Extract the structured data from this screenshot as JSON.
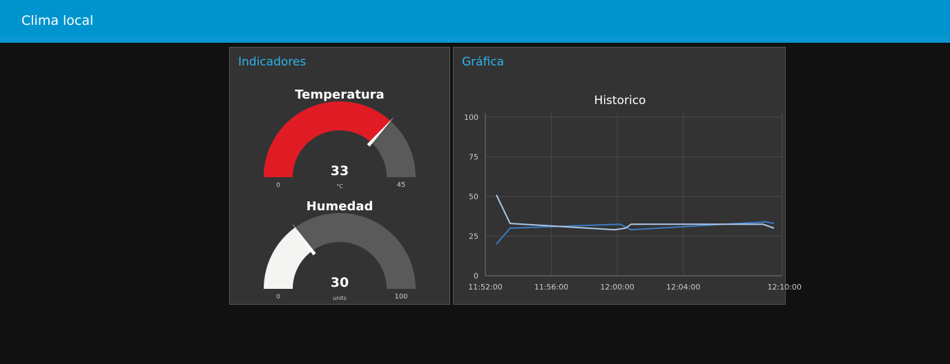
{
  "toolbar": {
    "title": "Clima local"
  },
  "groups": {
    "indicadores": {
      "title": "Indicadores",
      "gauges": [
        {
          "label": "Temperatura",
          "value": 33,
          "display": "33",
          "min": 0,
          "max": 45,
          "min_label": "0",
          "max_label": "45",
          "units": "°C",
          "color": "#e01b24"
        },
        {
          "label": "Humedad",
          "value": 30,
          "display": "30",
          "min": 0,
          "max": 100,
          "min_label": "0",
          "max_label": "100",
          "units": "units",
          "color": "#f4f4f2"
        }
      ]
    },
    "grafica": {
      "title": "Gráfica"
    }
  },
  "colors": {
    "accent": "#0094ce",
    "group_title": "#2db5ea",
    "gauge_background": "#5a5a5a",
    "series_1": "#3a7cc4",
    "series_2": "#aec7e8"
  },
  "chart_data": {
    "type": "line",
    "title": "Historico",
    "xlabel": "",
    "ylabel": "",
    "ylim": [
      0,
      100
    ],
    "yticks": [
      0,
      25,
      50,
      75,
      100
    ],
    "xlim": [
      "11:52:00",
      "12:10:00"
    ],
    "xticks": [
      "11:52:00",
      "11:56:00",
      "12:00:00",
      "12:04:00",
      "12:10:00"
    ],
    "grid": true,
    "series": [
      {
        "color": "#3a7cc4",
        "x": [
          "11:52:40",
          "11:53:30",
          "12:00:10",
          "12:00:50",
          "12:09:00",
          "12:09:30"
        ],
        "y": [
          20,
          30,
          32.5,
          29,
          34,
          33
        ]
      },
      {
        "color": "#aec7e8",
        "x": [
          "11:52:40",
          "11:53:30",
          "11:59:50",
          "12:00:30",
          "12:00:50",
          "12:08:50",
          "12:09:30"
        ],
        "y": [
          51,
          33,
          29,
          30,
          32.5,
          32.5,
          30
        ]
      }
    ]
  }
}
